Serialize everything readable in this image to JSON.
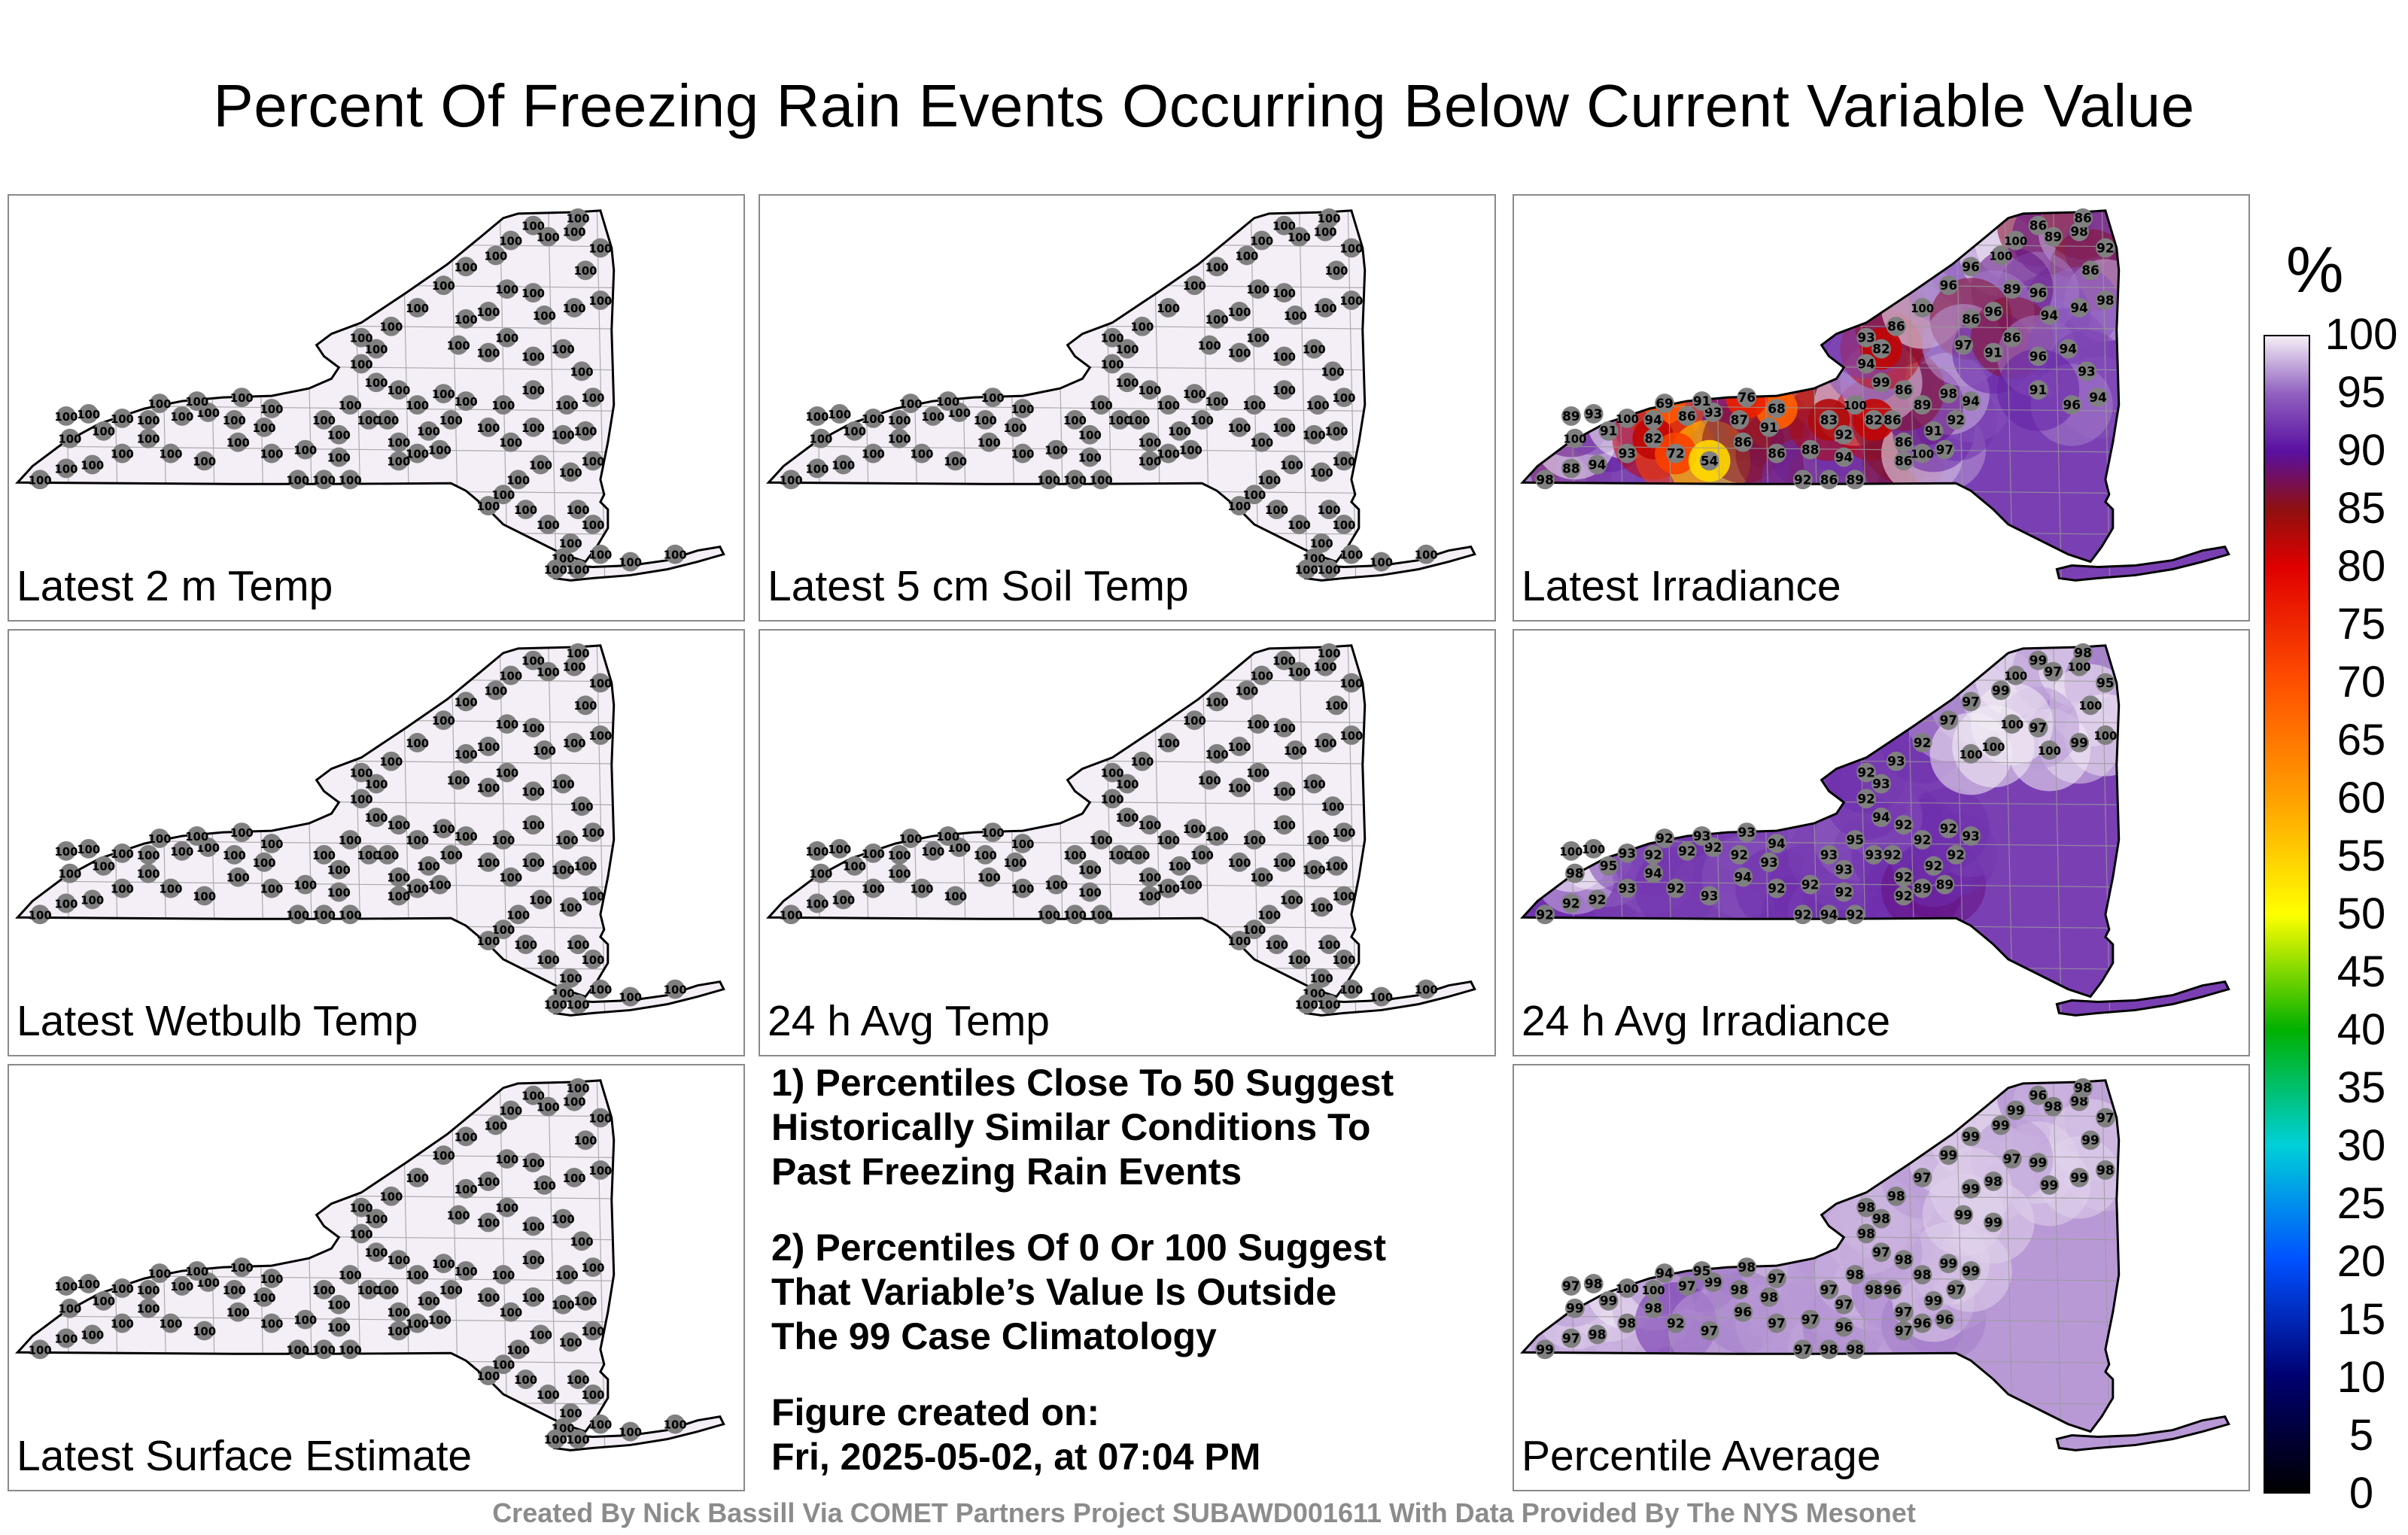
{
  "title": "Percent Of Freezing Rain Events Occurring Below Current Variable Value",
  "panels": [
    {
      "label": "Latest 2 m Temp",
      "field": "uniform",
      "value": 100
    },
    {
      "label": "Latest 5 cm Soil Temp",
      "field": "uniform",
      "value": 100
    },
    {
      "label": "Latest Irradiance",
      "field": "irradiance",
      "value": null
    },
    {
      "label": "Latest Wetbulb Temp",
      "field": "uniform",
      "value": 100
    },
    {
      "label": "24 h Avg Temp",
      "field": "uniform",
      "value": 100
    },
    {
      "label": "24 h Avg Irradiance",
      "field": "avg_irradiance",
      "value": null
    },
    {
      "label": "Latest Surface Estimate",
      "field": "uniform",
      "value": 100
    },
    {
      "label": "Percentile Average",
      "field": "average",
      "value": null
    }
  ],
  "notes": [
    "1) Percentiles Close To 50 Suggest\nHistorically Similar Conditions To\nPast Freezing Rain Events",
    "2) Percentiles Of 0 Or 100 Suggest\nThat Variable’s Value Is Outside\nThe 99 Case Climatology",
    "Figure created on:\nFri, 2025-05-02, at 07:04 PM"
  ],
  "credit": "Created By Nick Bassill Via COMET Partners Project SUBAWD001611 With Data Provided By The NYS Mesonet",
  "colorbar": {
    "unit": "%",
    "min": 0,
    "max": 100,
    "ticks": [
      100,
      95,
      90,
      85,
      80,
      75,
      70,
      65,
      60,
      55,
      50,
      45,
      40,
      35,
      30,
      25,
      20,
      15,
      10,
      5,
      0
    ],
    "colors": {
      "c0": "#000000",
      "c10": "#000070",
      "c20": "#0050ff",
      "c30": "#00d0d8",
      "c40": "#00b000",
      "c50": "#ffff00",
      "c60": "#ffa000",
      "c70": "#ff5000",
      "c80": "#e00000",
      "c85": "#901010",
      "c90": "#5a10a0",
      "c95": "#9060c0",
      "c100": "#f4eef6"
    }
  },
  "stations": {
    "irradiance": [
      98,
      88,
      94,
      93,
      91,
      100,
      89,
      93,
      100,
      94,
      86,
      93,
      87,
      91,
      68,
      76,
      91,
      69,
      82,
      72,
      54,
      86,
      86,
      88,
      86,
      92,
      89,
      94,
      92,
      83,
      100,
      82,
      86,
      86,
      86,
      100,
      97,
      91,
      92,
      94,
      98,
      89,
      86,
      99,
      94,
      82,
      93,
      86,
      100,
      96,
      96,
      100,
      100,
      86,
      89,
      98,
      86,
      92,
      86,
      98,
      94,
      94,
      96,
      89,
      96,
      86,
      97,
      91,
      86,
      96,
      94,
      93,
      94,
      96,
      91
    ],
    "avg_irradiance": [
      92,
      92,
      92,
      93,
      95,
      98,
      100,
      100,
      93,
      92,
      92,
      92,
      92,
      93,
      94,
      93,
      93,
      92,
      94,
      92,
      93,
      94,
      92,
      92,
      94,
      92,
      92,
      92,
      93,
      93,
      95,
      93,
      92,
      92,
      92,
      89,
      89,
      92,
      92,
      93,
      92,
      92,
      92,
      94,
      92,
      93,
      92,
      93,
      92,
      97,
      97,
      99,
      100,
      99,
      97,
      100,
      98,
      95,
      100,
      100,
      99,
      100,
      97,
      100,
      100,
      100
    ],
    "average": [
      99,
      97,
      98,
      98,
      99,
      99,
      97,
      98,
      100,
      100,
      97,
      99,
      98,
      98,
      97,
      98,
      95,
      94,
      98,
      92,
      97,
      96,
      97,
      97,
      98,
      97,
      98,
      96,
      97,
      97,
      98,
      98,
      96,
      97,
      97,
      96,
      96,
      99,
      97,
      99,
      99,
      98,
      98,
      97,
      98,
      98,
      98,
      98,
      97,
      99,
      99,
      99,
      99,
      96,
      98,
      98,
      98,
      97,
      99,
      98,
      99,
      99,
      99,
      97,
      98,
      99,
      99,
      99
    ]
  }
}
